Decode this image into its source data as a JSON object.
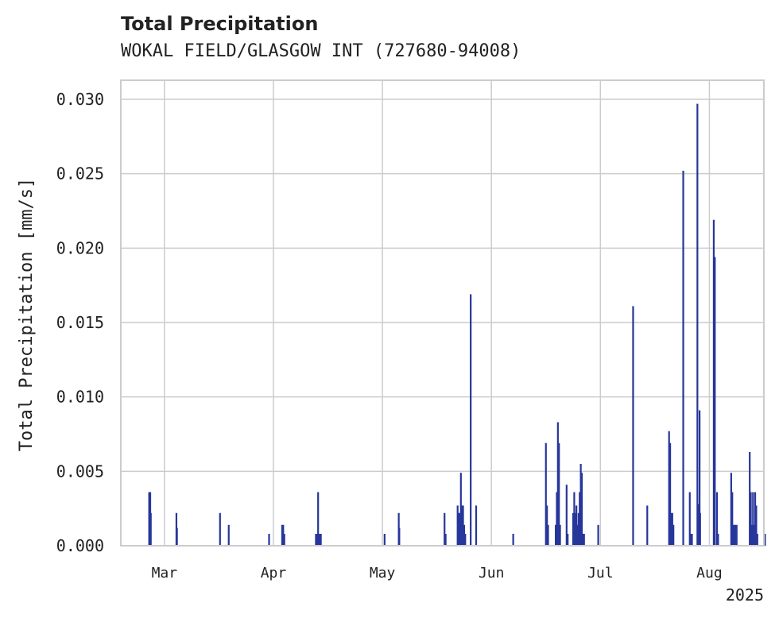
{
  "chart_data": {
    "type": "bar",
    "title": "Total Precipitation",
    "subtitle": "WOKAL FIELD/GLASGOW INT (727680-94008)",
    "xlabel": "",
    "ylabel": "Total Precipitation [mm/s]",
    "ylim": [
      0,
      0.0312
    ],
    "xlim_days": [
      -4,
      55
    ],
    "x_unit": "days since 2025-02-25 (data) / months as ticks",
    "yticks": [
      "0.000",
      "0.005",
      "0.010",
      "0.015",
      "0.020",
      "0.025",
      "0.030"
    ],
    "ytick_values": [
      0.0,
      0.005,
      0.01,
      0.015,
      0.02,
      0.025,
      0.03
    ],
    "xticks": [
      "Mar",
      "Apr",
      "May",
      "Jun",
      "Jul",
      "Aug"
    ],
    "xtick_positions": [
      0,
      10,
      20,
      30,
      40,
      50
    ],
    "year_label": "2025",
    "grid": true,
    "bar_color": "#26369a",
    "bars": [
      {
        "x": -1.4,
        "y": 0.0036
      },
      {
        "x": -1.3,
        "y": 0.0036
      },
      {
        "x": -1.25,
        "y": 0.0022
      },
      {
        "x": 1.1,
        "y": 0.0022
      },
      {
        "x": 1.15,
        "y": 0.0012
      },
      {
        "x": 5.1,
        "y": 0.0022
      },
      {
        "x": 5.9,
        "y": 0.0014
      },
      {
        "x": 9.6,
        "y": 0.0008
      },
      {
        "x": 10.8,
        "y": 0.0014
      },
      {
        "x": 10.9,
        "y": 0.0014
      },
      {
        "x": 11.0,
        "y": 0.0008
      },
      {
        "x": 13.9,
        "y": 0.0008
      },
      {
        "x": 14.0,
        "y": 0.0008
      },
      {
        "x": 14.1,
        "y": 0.0036
      },
      {
        "x": 14.2,
        "y": 0.0008
      },
      {
        "x": 14.35,
        "y": 0.0008
      },
      {
        "x": 20.2,
        "y": 0.0008
      },
      {
        "x": 21.5,
        "y": 0.0022
      },
      {
        "x": 21.55,
        "y": 0.0012
      },
      {
        "x": 25.7,
        "y": 0.0022
      },
      {
        "x": 25.8,
        "y": 0.0008
      },
      {
        "x": 26.9,
        "y": 0.0027
      },
      {
        "x": 27.0,
        "y": 0.0022
      },
      {
        "x": 27.1,
        "y": 0.0022
      },
      {
        "x": 27.2,
        "y": 0.0049
      },
      {
        "x": 27.3,
        "y": 0.0027
      },
      {
        "x": 27.4,
        "y": 0.0027
      },
      {
        "x": 27.5,
        "y": 0.0014
      },
      {
        "x": 27.6,
        "y": 0.0008
      },
      {
        "x": 28.1,
        "y": 0.0169
      },
      {
        "x": 28.6,
        "y": 0.0027
      },
      {
        "x": 32.0,
        "y": 0.0008
      },
      {
        "x": 35.0,
        "y": 0.0069
      },
      {
        "x": 35.1,
        "y": 0.0027
      },
      {
        "x": 35.2,
        "y": 0.0014
      },
      {
        "x": 35.9,
        "y": 0.0014
      },
      {
        "x": 36.0,
        "y": 0.0036
      },
      {
        "x": 36.1,
        "y": 0.0083
      },
      {
        "x": 36.2,
        "y": 0.0069
      },
      {
        "x": 36.3,
        "y": 0.0014
      },
      {
        "x": 36.9,
        "y": 0.0041
      },
      {
        "x": 37.0,
        "y": 0.0008
      },
      {
        "x": 37.5,
        "y": 0.0022
      },
      {
        "x": 37.6,
        "y": 0.0036
      },
      {
        "x": 37.7,
        "y": 0.0022
      },
      {
        "x": 37.8,
        "y": 0.0027
      },
      {
        "x": 37.9,
        "y": 0.0014
      },
      {
        "x": 38.0,
        "y": 0.0022
      },
      {
        "x": 38.1,
        "y": 0.0036
      },
      {
        "x": 38.2,
        "y": 0.0055
      },
      {
        "x": 38.3,
        "y": 0.0049
      },
      {
        "x": 38.4,
        "y": 0.0008
      },
      {
        "x": 38.5,
        "y": 0.0008
      },
      {
        "x": 39.8,
        "y": 0.0014
      },
      {
        "x": 43.0,
        "y": 0.0161
      },
      {
        "x": 44.3,
        "y": 0.0027
      },
      {
        "x": 46.3,
        "y": 0.0077
      },
      {
        "x": 46.4,
        "y": 0.0069
      },
      {
        "x": 46.5,
        "y": 0.0022
      },
      {
        "x": 46.6,
        "y": 0.0022
      },
      {
        "x": 46.7,
        "y": 0.0014
      },
      {
        "x": 47.6,
        "y": 0.0252
      },
      {
        "x": 48.2,
        "y": 0.0036
      },
      {
        "x": 48.3,
        "y": 0.0008
      },
      {
        "x": 48.4,
        "y": 0.0008
      },
      {
        "x": 48.9,
        "y": 0.0297
      },
      {
        "x": 49.0,
        "y": 0.0028
      },
      {
        "x": 49.1,
        "y": 0.0091
      },
      {
        "x": 49.15,
        "y": 0.0022
      },
      {
        "x": 50.4,
        "y": 0.0219
      },
      {
        "x": 50.5,
        "y": 0.0194
      },
      {
        "x": 50.7,
        "y": 0.0036
      },
      {
        "x": 50.8,
        "y": 0.0008
      },
      {
        "x": 52.0,
        "y": 0.0049
      },
      {
        "x": 52.1,
        "y": 0.0036
      },
      {
        "x": 52.2,
        "y": 0.0014
      },
      {
        "x": 52.3,
        "y": 0.0014
      },
      {
        "x": 52.4,
        "y": 0.0014
      },
      {
        "x": 52.5,
        "y": 0.0014
      },
      {
        "x": 53.7,
        "y": 0.0063
      },
      {
        "x": 53.8,
        "y": 0.0036
      },
      {
        "x": 53.9,
        "y": 0.0014
      },
      {
        "x": 54.0,
        "y": 0.0036
      },
      {
        "x": 54.1,
        "y": 0.0014
      },
      {
        "x": 54.2,
        "y": 0.0036
      },
      {
        "x": 54.3,
        "y": 0.0027
      },
      {
        "x": 54.4,
        "y": 0.0008
      },
      {
        "x": 55.1,
        "y": 0.0008
      }
    ]
  }
}
